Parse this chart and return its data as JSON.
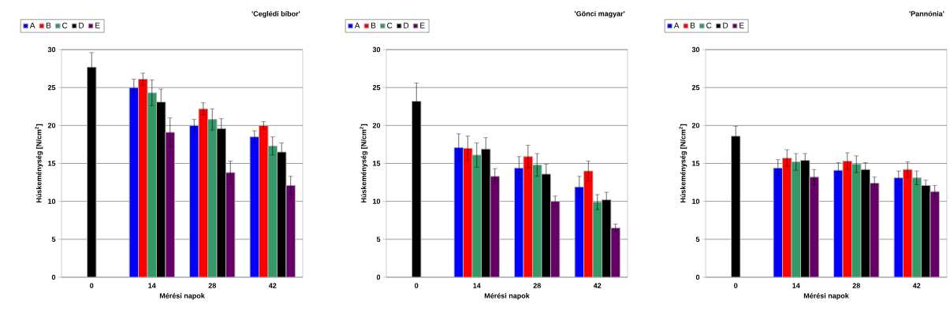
{
  "chart_data": [
    {
      "type": "bar",
      "title": "'Ceglédi bíbor'",
      "xlabel": "Mérési napok",
      "ylabel": "Húskeménység [N/cm$^{2}$]",
      "categories": [
        "0",
        "14",
        "28",
        "42"
      ],
      "ylim": [
        0,
        30
      ],
      "yticks": [
        0,
        5,
        10,
        15,
        20,
        25,
        30
      ],
      "grid": "y",
      "legend": "top left",
      "series": [
        {
          "name": "A",
          "color": "#0000ff",
          "values": [
            null,
            25.0,
            20.0,
            18.5
          ],
          "errors": [
            null,
            1.1,
            0.8,
            0.8
          ]
        },
        {
          "name": "B",
          "color": "#ff0000",
          "values": [
            null,
            26.1,
            22.2,
            20.0
          ],
          "errors": [
            null,
            0.8,
            0.8,
            0.5
          ]
        },
        {
          "name": "C",
          "color": "#339966",
          "values": [
            null,
            24.3,
            20.8,
            17.3
          ],
          "errors": [
            null,
            1.7,
            1.4,
            1.2
          ]
        },
        {
          "name": "D",
          "color": "#000000",
          "values": [
            null,
            23.1,
            19.6,
            16.5
          ],
          "errors": [
            null,
            1.7,
            1.3,
            1.2
          ]
        },
        {
          "name": "E",
          "color": "#660066",
          "values": [
            null,
            19.1,
            13.8,
            12.1
          ],
          "errors": [
            null,
            1.9,
            1.5,
            1.2
          ]
        },
        {
          "color": "#000000",
          "values": [
            27.7,
            null,
            null,
            null
          ],
          "errors": [
            1.9,
            null,
            null,
            null
          ]
        }
      ]
    },
    {
      "type": "bar",
      "title": "'Gönci magyar'",
      "xlabel": "Mérési napok",
      "ylabel": "Húskeménység [N/cm$^{2}$]",
      "categories": [
        "0",
        "14",
        "28",
        "42"
      ],
      "ylim": [
        0,
        30
      ],
      "yticks": [
        0,
        5,
        10,
        15,
        20,
        25,
        30
      ],
      "grid": "y",
      "legend": "top left",
      "series": [
        {
          "name": "A",
          "color": "#0000ff",
          "values": [
            null,
            17.1,
            14.4,
            11.9
          ],
          "errors": [
            null,
            1.8,
            1.5,
            1.4
          ]
        },
        {
          "name": "B",
          "color": "#ff0000",
          "values": [
            null,
            17.0,
            15.9,
            14.0
          ],
          "errors": [
            null,
            1.6,
            1.5,
            1.3
          ]
        },
        {
          "name": "C",
          "color": "#339966",
          "values": [
            null,
            16.1,
            14.8,
            9.9
          ],
          "errors": [
            null,
            1.6,
            1.5,
            1.0
          ]
        },
        {
          "name": "D",
          "color": "#000000",
          "values": [
            null,
            16.9,
            13.6,
            10.2
          ],
          "errors": [
            null,
            1.5,
            1.3,
            1.0
          ]
        },
        {
          "name": "E",
          "color": "#660066",
          "values": [
            null,
            13.3,
            10.0,
            6.5
          ],
          "errors": [
            null,
            1.0,
            0.7,
            0.5
          ]
        },
        {
          "color": "#000000",
          "values": [
            23.2,
            null,
            null,
            null
          ],
          "errors": [
            2.4,
            null,
            null,
            null
          ]
        }
      ]
    },
    {
      "type": "bar",
      "title": "'Pannónia'",
      "xlabel": "Mérési napok",
      "ylabel": "Húskeménység [N/cm$^{2}$]",
      "categories": [
        "0",
        "14",
        "28",
        "42"
      ],
      "ylim": [
        0,
        30
      ],
      "yticks": [
        0,
        5,
        10,
        15,
        20,
        25,
        30
      ],
      "grid": "y",
      "legend": "top left",
      "series": [
        {
          "name": "A",
          "color": "#0000ff",
          "values": [
            null,
            14.4,
            14.1,
            13.1
          ],
          "errors": [
            null,
            1.1,
            1.0,
            0.9
          ]
        },
        {
          "name": "B",
          "color": "#ff0000",
          "values": [
            null,
            15.7,
            15.3,
            14.2
          ],
          "errors": [
            null,
            1.1,
            1.1,
            1.0
          ]
        },
        {
          "name": "C",
          "color": "#339966",
          "values": [
            null,
            15.2,
            14.9,
            13.1
          ],
          "errors": [
            null,
            1.1,
            1.1,
            0.9
          ]
        },
        {
          "name": "D",
          "color": "#000000",
          "values": [
            null,
            15.4,
            14.2,
            12.1
          ],
          "errors": [
            null,
            0.9,
            0.9,
            0.7
          ]
        },
        {
          "name": "E",
          "color": "#660066",
          "values": [
            null,
            13.2,
            12.4,
            11.3
          ],
          "errors": [
            null,
            1.0,
            0.8,
            0.8
          ]
        },
        {
          "color": "#000000",
          "values": [
            18.6,
            null,
            null,
            null
          ],
          "errors": [
            1.3,
            null,
            null,
            null
          ]
        }
      ]
    }
  ]
}
